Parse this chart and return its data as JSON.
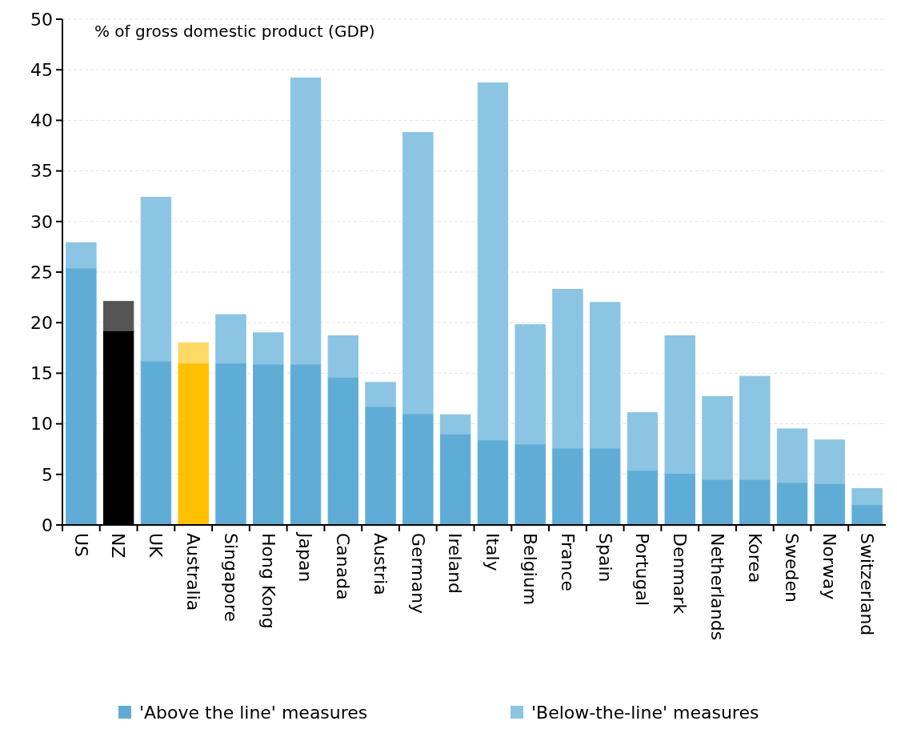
{
  "chart_data": {
    "type": "bar",
    "stacked": true,
    "ylabel": "% of gross domestic product (GDP)",
    "categories": [
      "US",
      "NZ",
      "UK",
      "Australia",
      "Singapore",
      "Hong Kong",
      "Japan",
      "Canada",
      "Austria",
      "Germany",
      "Ireland",
      "Italy",
      "Belgium",
      "France",
      "Spain",
      "Portugal",
      "Denmark",
      "Netherlands",
      "Korea",
      "Sweden",
      "Norway",
      "Switzerland"
    ],
    "series": [
      {
        "name": "'Above the line' measures",
        "color": "#5fadd6",
        "colors": [
          "#5fadd6",
          "#000000",
          "#5fadd6",
          "#ffc000",
          "#5fadd6",
          "#5fadd6",
          "#5fadd6",
          "#5fadd6",
          "#5fadd6",
          "#5fadd6",
          "#5fadd6",
          "#5fadd6",
          "#5fadd6",
          "#5fadd6",
          "#5fadd6",
          "#5fadd6",
          "#5fadd6",
          "#5fadd6",
          "#5fadd6",
          "#5fadd6",
          "#5fadd6",
          "#5fadd6"
        ],
        "values": [
          25.4,
          19.2,
          16.2,
          16.0,
          16.0,
          15.9,
          15.9,
          14.6,
          11.7,
          11.0,
          9.0,
          8.4,
          8.0,
          7.6,
          7.6,
          5.4,
          5.1,
          4.5,
          4.5,
          4.2,
          4.1,
          2.0
        ]
      },
      {
        "name": "'Below-the-line' measures",
        "color": "#8cc4e4",
        "colors": [
          "#8cc4e4",
          "#555555",
          "#8cc4e4",
          "#ffd966",
          "#8cc4e4",
          "#8cc4e4",
          "#8cc4e4",
          "#8cc4e4",
          "#8cc4e4",
          "#8cc4e4",
          "#8cc4e4",
          "#8cc4e4",
          "#8cc4e4",
          "#8cc4e4",
          "#8cc4e4",
          "#8cc4e4",
          "#8cc4e4",
          "#8cc4e4",
          "#8cc4e4",
          "#8cc4e4",
          "#8cc4e4",
          "#8cc4e4"
        ],
        "values": [
          2.5,
          2.9,
          16.2,
          2.0,
          4.8,
          3.1,
          28.3,
          4.1,
          2.4,
          27.8,
          1.9,
          35.3,
          11.8,
          15.7,
          14.4,
          5.7,
          13.6,
          8.2,
          10.2,
          5.3,
          4.3,
          1.6
        ]
      }
    ],
    "ylim": [
      0,
      50
    ],
    "yticks": [
      0,
      5,
      10,
      15,
      20,
      25,
      30,
      35,
      40,
      45,
      50
    ],
    "grid": "y",
    "legend": "bottom"
  }
}
